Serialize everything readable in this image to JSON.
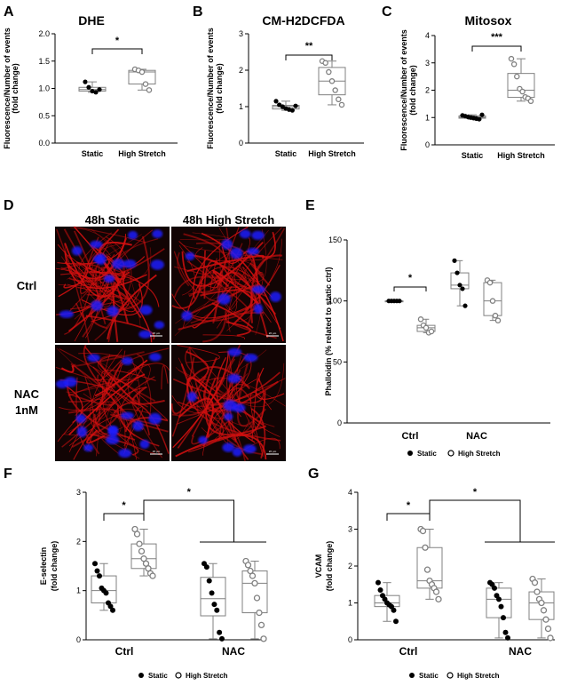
{
  "panel_letters": [
    "A",
    "B",
    "C",
    "D",
    "E",
    "F",
    "G"
  ],
  "micrograph": {
    "col_titles": [
      "48h Static",
      "48h High Stretch"
    ],
    "row_labels": [
      [
        "Ctrl"
      ],
      [
        "NAC",
        "1nM"
      ]
    ],
    "scale_text": "20 µm"
  },
  "colors": {
    "box": "#808080",
    "open_marker": "#808080",
    "stain_red": "#d21010",
    "nuclei_blue": "#1e1eff"
  },
  "chart_data": [
    {
      "id": "A",
      "type": "box",
      "title": "DHE",
      "ylabel": [
        "Fluorescence/Number of events",
        "(fold change)"
      ],
      "ylim": [
        0,
        2.0
      ],
      "yticks": [
        "0.0",
        "0.5",
        "1.0",
        "1.5",
        "2.0"
      ],
      "categories": [
        "Static",
        "High Stretch"
      ],
      "points": [
        [
          1.12,
          1.02,
          0.95,
          0.93,
          0.98
        ],
        [
          1.35,
          1.33,
          1.3,
          1.08,
          0.97
        ]
      ],
      "markers": [
        "filled",
        "open"
      ],
      "significance": [
        {
          "between": [
            0,
            1
          ],
          "label": "*"
        }
      ]
    },
    {
      "id": "B",
      "type": "box",
      "title": "CM-H2DCFDA",
      "ylabel": [
        "Fluorescence/Number of events",
        "(fold change)"
      ],
      "ylim": [
        0,
        3
      ],
      "yticks": [
        "0",
        "1",
        "2",
        "3"
      ],
      "categories": [
        "Static",
        "High Stretch"
      ],
      "points": [
        [
          1.15,
          1.05,
          1.0,
          0.95,
          0.92,
          0.9,
          1.02
        ],
        [
          2.25,
          2.2,
          1.95,
          1.7,
          1.45,
          1.2,
          1.05
        ]
      ],
      "markers": [
        "filled",
        "open"
      ],
      "significance": [
        {
          "between": [
            0,
            1
          ],
          "label": "**"
        }
      ]
    },
    {
      "id": "C",
      "type": "box",
      "title": "Mitosox",
      "ylabel": [
        "Fluorescence/Number of events",
        "(fold change)"
      ],
      "ylim": [
        0,
        4
      ],
      "yticks": [
        "0",
        "1",
        "2",
        "3",
        "4"
      ],
      "categories": [
        "Static",
        "High Stretch"
      ],
      "points": [
        [
          1.08,
          1.05,
          1.02,
          1.0,
          0.98,
          0.96,
          0.94,
          1.1
        ],
        [
          3.15,
          2.95,
          2.5,
          2.05,
          1.95,
          1.75,
          1.7,
          1.6
        ]
      ],
      "markers": [
        "filled",
        "open"
      ],
      "significance": [
        {
          "between": [
            0,
            1
          ],
          "label": "***"
        }
      ]
    },
    {
      "id": "E",
      "type": "box",
      "ylabel": [
        "Phalloidin (% related to static ctrl)"
      ],
      "ylim": [
        0,
        150
      ],
      "yticks": [
        "0",
        "50",
        "100",
        "150"
      ],
      "groups": [
        "Ctrl",
        "NAC"
      ],
      "series": [
        {
          "name": "Static",
          "marker": "filled",
          "points": [
            [
              100,
              100,
              100,
              100,
              100
            ],
            [
              133,
              123,
              113,
              110,
              96
            ]
          ]
        },
        {
          "name": "High Stretch",
          "marker": "open",
          "points": [
            [
              85,
              80,
              78,
              74,
              75
            ],
            [
              117,
              115,
              100,
              88,
              84
            ]
          ]
        }
      ],
      "significance": [
        {
          "between": [
            "Ctrl-Static",
            "Ctrl-High Stretch"
          ],
          "label": "*"
        }
      ],
      "legend": "bottom"
    },
    {
      "id": "F",
      "type": "box",
      "ylabel": [
        "E-selectin",
        "(fold change)"
      ],
      "ylim": [
        0,
        3
      ],
      "yticks": [
        "0",
        "1",
        "2",
        "3"
      ],
      "groups": [
        "Ctrl",
        "NAC"
      ],
      "series": [
        {
          "name": "Static",
          "marker": "filled",
          "points": [
            [
              1.55,
              1.4,
              1.3,
              1.05,
              1.0,
              0.95,
              0.75,
              0.68,
              0.6
            ],
            [
              1.55,
              1.48,
              1.2,
              0.95,
              0.72,
              0.6,
              0.15,
              0.02
            ]
          ]
        },
        {
          "name": "High Stretch",
          "marker": "open",
          "points": [
            [
              2.25,
              2.15,
              1.95,
              1.8,
              1.65,
              1.55,
              1.45,
              1.35,
              1.3
            ],
            [
              1.6,
              1.52,
              1.4,
              1.3,
              1.15,
              0.85,
              0.55,
              0.3,
              0.02
            ]
          ]
        }
      ],
      "significance": [
        {
          "between": [
            "Ctrl-Static",
            "Ctrl-High Stretch"
          ],
          "label": "*"
        },
        {
          "between": [
            "Ctrl-High Stretch",
            "NAC"
          ],
          "label": "*"
        }
      ],
      "legend": "bottom"
    },
    {
      "id": "G",
      "type": "box",
      "ylabel": [
        "VCAM",
        "(fold change)"
      ],
      "ylim": [
        0,
        4
      ],
      "yticks": [
        "0",
        "1",
        "2",
        "3",
        "4"
      ],
      "groups": [
        "Ctrl",
        "NAC"
      ],
      "series": [
        {
          "name": "Static",
          "marker": "filled",
          "points": [
            [
              1.55,
              1.35,
              1.2,
              1.1,
              1.0,
              0.95,
              0.9,
              0.8,
              0.5
            ],
            [
              1.55,
              1.5,
              1.4,
              1.2,
              1.1,
              0.9,
              0.6,
              0.2,
              0.05
            ]
          ]
        },
        {
          "name": "High Stretch",
          "marker": "open",
          "points": [
            [
              3.0,
              2.95,
              2.5,
              1.9,
              1.6,
              1.5,
              1.4,
              1.3,
              1.1
            ],
            [
              1.65,
              1.55,
              1.3,
              1.1,
              1.0,
              0.8,
              0.55,
              0.3,
              0.05
            ]
          ]
        }
      ],
      "significance": [
        {
          "between": [
            "Ctrl-Static",
            "Ctrl-High Stretch"
          ],
          "label": "*"
        },
        {
          "between": [
            "Ctrl-High Stretch",
            "NAC"
          ],
          "label": "*"
        }
      ],
      "legend": "bottom"
    }
  ]
}
